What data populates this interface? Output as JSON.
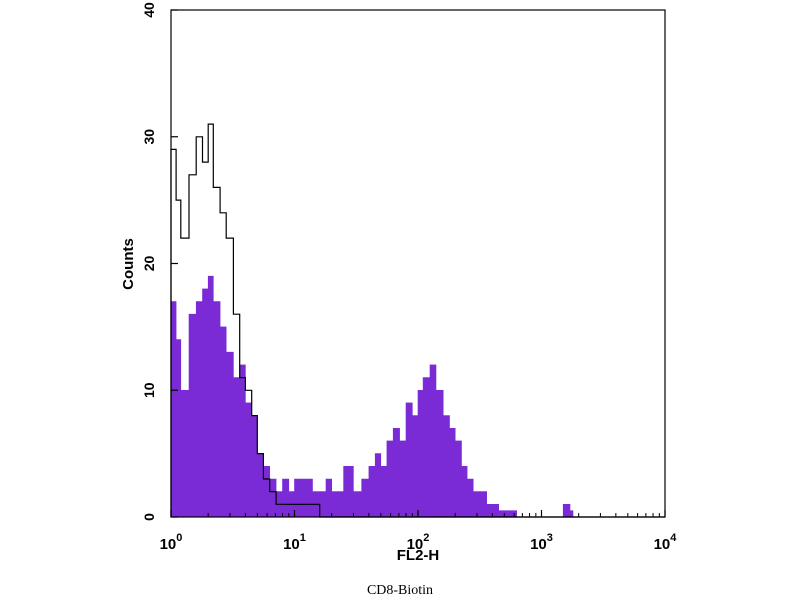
{
  "chart_data": {
    "type": "area",
    "xscale": "log",
    "xlim": [
      1,
      10000
    ],
    "ylim": [
      0,
      40
    ],
    "xlabel": "FL2-H",
    "ylabel": "Counts",
    "xticks": [
      {
        "value": 1,
        "base": "10",
        "exp": "0"
      },
      {
        "value": 10,
        "base": "10",
        "exp": "1"
      },
      {
        "value": 100,
        "base": "10",
        "exp": "2"
      },
      {
        "value": 1000,
        "base": "10",
        "exp": "3"
      },
      {
        "value": 10000,
        "base": "10",
        "exp": "4"
      }
    ],
    "yticks": [
      "0",
      "10",
      "20",
      "30",
      "40"
    ],
    "ytick_values": [
      0,
      10,
      20,
      30,
      40
    ],
    "series": [
      {
        "style": "filled",
        "color": "#7b2bd6",
        "x": [
          1.0,
          1.1,
          1.2,
          1.4,
          1.6,
          1.8,
          2.0,
          2.2,
          2.5,
          2.8,
          3.2,
          3.6,
          4.0,
          4.5,
          5.0,
          5.6,
          6.3,
          7.1,
          8.0,
          9.0,
          10,
          12,
          14,
          16,
          18,
          20,
          25,
          30,
          35,
          40,
          45,
          50,
          56,
          63,
          71,
          80,
          90,
          100,
          110,
          125,
          140,
          160,
          180,
          200,
          225,
          250,
          280,
          320,
          360,
          400,
          450,
          500,
          560,
          630,
          710,
          800,
          1000,
          1200,
          1400,
          1500,
          1600,
          1700,
          1800,
          2000,
          3000,
          5000,
          10000
        ],
        "y": [
          17,
          14,
          10,
          16,
          17,
          18,
          19,
          17,
          15,
          13,
          11,
          12,
          9,
          8,
          5,
          4,
          3,
          2,
          3,
          2,
          3,
          3,
          2,
          2,
          3,
          2,
          4,
          2,
          3,
          4,
          5,
          4,
          6,
          7,
          6,
          9,
          8,
          10,
          11,
          12,
          10,
          8,
          7,
          6,
          4,
          3,
          2,
          2,
          1,
          1,
          0.5,
          0.5,
          0.5,
          0,
          0,
          0,
          0,
          0,
          0,
          1,
          1,
          0.5,
          0,
          0,
          0,
          0,
          0
        ]
      },
      {
        "style": "outline",
        "color": "#000000",
        "x": [
          1.0,
          1.1,
          1.2,
          1.4,
          1.6,
          1.8,
          2.0,
          2.2,
          2.5,
          2.8,
          3.2,
          3.6,
          4.0,
          4.5,
          5.0,
          5.6,
          6.3,
          7.1,
          8.0,
          9.0,
          10,
          12,
          14,
          16,
          20,
          50,
          100,
          10000
        ],
        "y": [
          29,
          25,
          22,
          27,
          30,
          28,
          31,
          26,
          24,
          22,
          16,
          11,
          10,
          8,
          5,
          3,
          2,
          1,
          1,
          1,
          1,
          1,
          1,
          0,
          0,
          0,
          0,
          0
        ]
      }
    ]
  },
  "caption": "CD8-Biotin"
}
